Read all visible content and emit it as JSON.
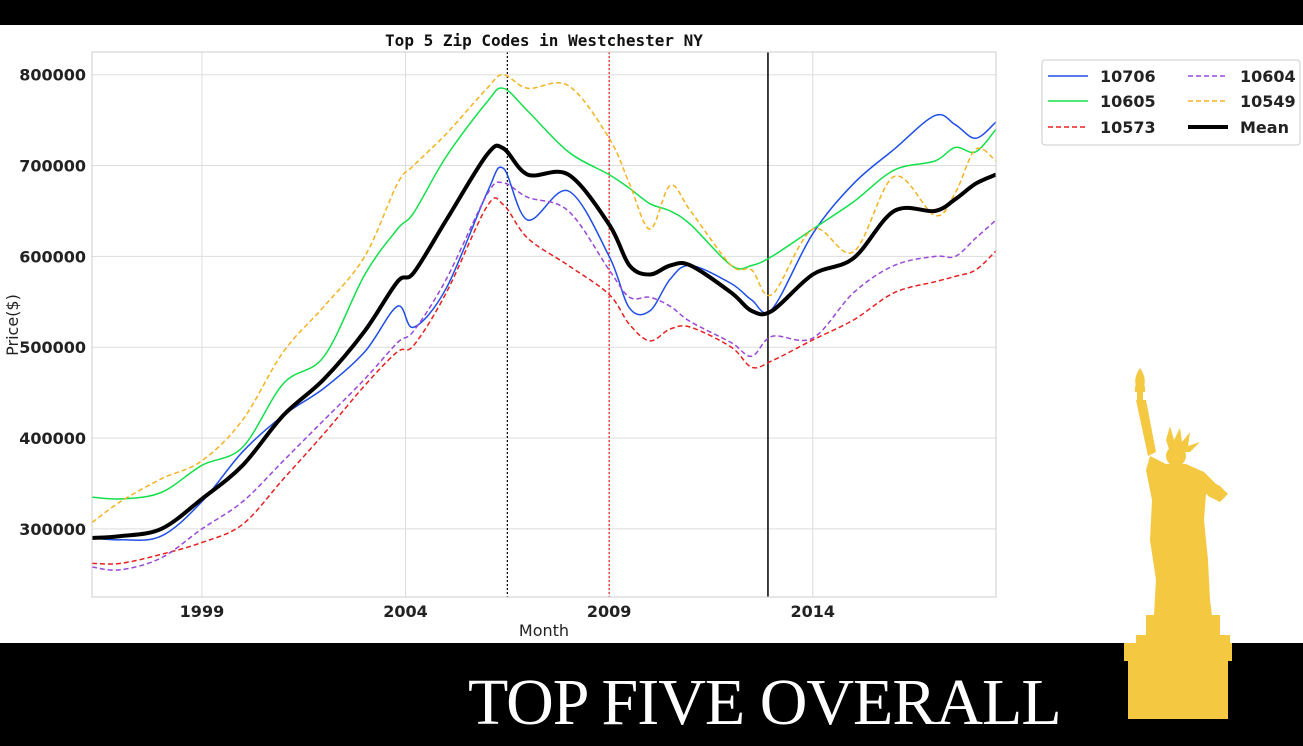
{
  "footer": {
    "title": "TOP FIVE OVERALL"
  },
  "colors": {
    "10706": "#1f4fe8",
    "10605": "#12e04a",
    "10573": "#e82020",
    "10604": "#9a48d8",
    "10549": "#f5b21e",
    "Mean": "#000000",
    "statue": "#f5c842"
  },
  "decor": {
    "statue_icon": "statue-of-liberty-icon"
  },
  "chart_data": {
    "type": "line",
    "title": "Top 5 Zip Codes in Westchester NY",
    "xlabel": "Month",
    "ylabel": "Price($)",
    "xlim": [
      1996.3,
      2018.5
    ],
    "ylim": [
      225000,
      825000
    ],
    "xticks": [
      1999,
      2004,
      2009,
      2014
    ],
    "yticks": [
      300000,
      400000,
      500000,
      600000,
      700000,
      800000
    ],
    "grid": true,
    "legend": {
      "position": "outside top-right",
      "columns": 2
    },
    "vlines": [
      {
        "x": 2006.5,
        "color": "#000000",
        "style": "dotted"
      },
      {
        "x": 2009.0,
        "color": "#e82020",
        "style": "dotted"
      },
      {
        "x": 2012.9,
        "color": "#000000",
        "style": "solid"
      }
    ],
    "x": [
      1996.3,
      1997,
      1998,
      1999,
      2000,
      2001,
      2002,
      2003,
      2003.8,
      2004.2,
      2005,
      2006,
      2006.4,
      2007,
      2008,
      2009,
      2009.5,
      2010,
      2010.5,
      2011,
      2012,
      2012.5,
      2013,
      2014,
      2015,
      2016,
      2017,
      2017.5,
      2018,
      2018.5
    ],
    "series": [
      {
        "name": "10706",
        "style": "solid",
        "width": 1.5,
        "values": [
          290000,
          288000,
          292000,
          330000,
          385000,
          425000,
          455000,
          495000,
          545000,
          522000,
          565000,
          670000,
          697000,
          640000,
          672000,
          600000,
          543000,
          540000,
          575000,
          590000,
          570000,
          552000,
          542000,
          625000,
          680000,
          718000,
          755000,
          745000,
          730000,
          748000
        ]
      },
      {
        "name": "10605",
        "style": "solid",
        "width": 1.5,
        "values": [
          335000,
          333000,
          340000,
          370000,
          390000,
          460000,
          490000,
          580000,
          630000,
          648000,
          710000,
          770000,
          785000,
          760000,
          715000,
          690000,
          675000,
          658000,
          650000,
          635000,
          590000,
          590000,
          600000,
          630000,
          660000,
          695000,
          705000,
          720000,
          715000,
          740000
        ]
      },
      {
        "name": "10573",
        "style": "dashed",
        "width": 1.5,
        "values": [
          262000,
          262000,
          272000,
          285000,
          305000,
          355000,
          405000,
          458000,
          495000,
          502000,
          560000,
          655000,
          657000,
          620000,
          590000,
          558000,
          525000,
          507000,
          520000,
          522000,
          500000,
          478000,
          485000,
          508000,
          530000,
          560000,
          572000,
          578000,
          585000,
          606000
        ]
      },
      {
        "name": "10604",
        "style": "dashed",
        "width": 1.5,
        "values": [
          258000,
          255000,
          268000,
          300000,
          330000,
          375000,
          420000,
          465000,
          505000,
          518000,
          575000,
          668000,
          681000,
          665000,
          650000,
          585000,
          555000,
          555000,
          545000,
          528000,
          505000,
          490000,
          512000,
          510000,
          560000,
          590000,
          600000,
          600000,
          620000,
          640000
        ]
      },
      {
        "name": "10549",
        "style": "dashed",
        "width": 1.5,
        "values": [
          307000,
          330000,
          355000,
          375000,
          420000,
          495000,
          545000,
          600000,
          680000,
          700000,
          735000,
          785000,
          800000,
          785000,
          788000,
          730000,
          680000,
          630000,
          678000,
          650000,
          590000,
          585000,
          558000,
          630000,
          605000,
          688000,
          645000,
          670000,
          718000,
          705000
        ]
      },
      {
        "name": "Mean",
        "style": "solid",
        "width": 4,
        "values": [
          290000,
          292000,
          300000,
          333000,
          370000,
          425000,
          465000,
          518000,
          572000,
          582000,
          640000,
          712000,
          719000,
          690000,
          690000,
          635000,
          590000,
          580000,
          590000,
          590000,
          560000,
          540000,
          540000,
          580000,
          598000,
          650000,
          650000,
          663000,
          680000,
          690000
        ]
      }
    ]
  }
}
